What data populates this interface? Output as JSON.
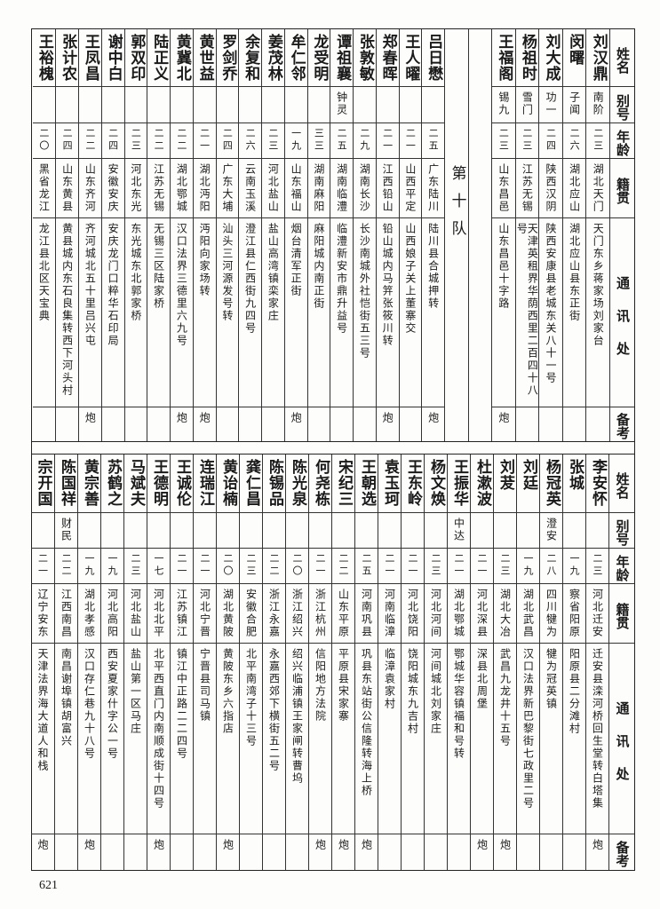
{
  "headers": {
    "name": "姓名",
    "alias": "别号",
    "age": "年龄",
    "native": "籍贯",
    "address": "通讯处",
    "remark": "备考"
  },
  "top": {
    "group_a": [
      {
        "name": "刘汉鼎",
        "alias": "南阶",
        "age": "二三",
        "native": "湖北天门",
        "address": "天门东乡蒋家场刘家台",
        "remark": ""
      },
      {
        "name": "闵曙",
        "alias": "子闻",
        "age": "二六",
        "native": "湖北应山",
        "address": "湖北应山县东正街",
        "remark": ""
      },
      {
        "name": "刘大成",
        "alias": "功一",
        "age": "二四",
        "native": "陕西汉阴",
        "address": "陕西安康县老城东关八十一号",
        "remark": ""
      },
      {
        "name": "杨祖时",
        "alias": "雪门",
        "age": "二三",
        "native": "江苏无锡",
        "address": "天津英租界华荫西里二百四十八号",
        "remark": ""
      },
      {
        "name": "王福阁",
        "alias": "锡九",
        "age": "二三",
        "native": "山东昌邑",
        "address": "山东昌邑十字路",
        "remark": "炮"
      }
    ],
    "division_label": "第十队",
    "group_b": [
      {
        "name": "吕日懋",
        "alias": "",
        "age": "二五",
        "native": "广东陆川",
        "address": "陆川县合城押转",
        "remark": "炮"
      },
      {
        "name": "王人曜",
        "alias": "",
        "age": "二一",
        "native": "山西平定",
        "address": "山西娘子关上董寨交",
        "remark": ""
      },
      {
        "name": "郑春晖",
        "alias": "",
        "age": "二一",
        "native": "江西铅山",
        "address": "铅山城内马笄张筱川转",
        "remark": "炮"
      },
      {
        "name": "张敦敏",
        "alias": "",
        "age": "二九",
        "native": "湖南长沙",
        "address": "长沙南城外社恺街五三号",
        "remark": ""
      },
      {
        "name": "谭祖襄",
        "alias": "钟灵",
        "age": "二五",
        "native": "湖南临澧",
        "address": "临澧新安市鼎升益号",
        "remark": ""
      },
      {
        "name": "龙受明",
        "alias": "",
        "age": "三三",
        "native": "湖南麻阳",
        "address": "麻阳城内南正街",
        "remark": ""
      },
      {
        "name": "牟仁邻",
        "alias": "",
        "age": "一九",
        "native": "山东福山",
        "address": "烟台清军正街",
        "remark": "炮"
      },
      {
        "name": "姜茂林",
        "alias": "",
        "age": "二三",
        "native": "河北盐山",
        "address": "盐山高湾镇栾家庄",
        "remark": ""
      },
      {
        "name": "余复和",
        "alias": "",
        "age": "二六",
        "native": "云南玉溪",
        "address": "澄江县仁西街九四号",
        "remark": ""
      },
      {
        "name": "罗剑乔",
        "alias": "",
        "age": "二四",
        "native": "广东大埔",
        "address": "汕头三河源发号转",
        "remark": ""
      },
      {
        "name": "黄世益",
        "alias": "",
        "age": "二一",
        "native": "湖北沔阳",
        "address": "沔阳向家场转",
        "remark": "炮"
      },
      {
        "name": "黄冀北",
        "alias": "",
        "age": "二二",
        "native": "湖北鄂城",
        "address": "汉口法界三德里六九号",
        "remark": "炮"
      },
      {
        "name": "陆正义",
        "alias": "",
        "age": "二二",
        "native": "江苏无锡",
        "address": "无锡三区陆家桥",
        "remark": ""
      },
      {
        "name": "郭双印",
        "alias": "",
        "age": "二三",
        "native": "河北东光",
        "address": "东光城东北郭家桥",
        "remark": ""
      },
      {
        "name": "谢中白",
        "alias": "",
        "age": "二四",
        "native": "安徽安庆",
        "address": "安庆龙门口粹华石印局",
        "remark": ""
      },
      {
        "name": "王凤昌",
        "alias": "",
        "age": "二二",
        "native": "山东齐河",
        "address": "齐河城北五十里吕兴屯",
        "remark": "炮"
      },
      {
        "name": "张计农",
        "alias": "",
        "age": "二四",
        "native": "山东黄县",
        "address": "黄县城内东石良集转西下河头村",
        "remark": ""
      },
      {
        "name": "王裕槐",
        "alias": "",
        "age": "二〇",
        "native": "黑省龙江",
        "address": "龙江县北区天宝典",
        "remark": ""
      }
    ]
  },
  "bottom": {
    "people": [
      {
        "name": "李安怀",
        "alias": "",
        "age": "二三",
        "native": "河北迁安",
        "address": "迁安县滦河桥回生堂转白塔集",
        "remark": "炮"
      },
      {
        "name": "张城",
        "alias": "",
        "age": "一九",
        "native": "察省阳原",
        "address": "阳原县二分滩村",
        "remark": ""
      },
      {
        "name": "杨冠英",
        "alias": "澄安",
        "age": "二八",
        "native": "四川犍为",
        "address": "犍为冠英镇",
        "remark": ""
      },
      {
        "name": "刘廷",
        "alias": "",
        "age": "一九",
        "native": "湖北武昌",
        "address": "汉口法界新巴黎街七政里二号",
        "remark": ""
      },
      {
        "name": "刘茇",
        "alias": "",
        "age": "二三",
        "native": "湖北大冶",
        "address": "武昌九龙井十五号",
        "remark": "炮"
      },
      {
        "name": "杜漱波",
        "alias": "",
        "age": "二一",
        "native": "河北深县",
        "address": "深县北周堡",
        "remark": "炮"
      },
      {
        "name": "王振华",
        "alias": "中达",
        "age": "二一",
        "native": "湖北鄂城",
        "address": "鄂城华容镇福和号转",
        "remark": ""
      },
      {
        "name": "杨文焕",
        "alias": "",
        "age": "二三",
        "native": "河北河间",
        "address": "河间城北刘家庄",
        "remark": ""
      },
      {
        "name": "王东岭",
        "alias": "",
        "age": "二一",
        "native": "河北饶阳",
        "address": "饶阳城东九吉村",
        "remark": ""
      },
      {
        "name": "袁玉珂",
        "alias": "",
        "age": "二一",
        "native": "河南临漳",
        "address": "临漳袁家村",
        "remark": ""
      },
      {
        "name": "王朝选",
        "alias": "",
        "age": "二五",
        "native": "河南巩县",
        "address": "巩县东站街公信隆转海上桥",
        "remark": "炮"
      },
      {
        "name": "宋纪三",
        "alias": "",
        "age": "二二",
        "native": "山东平原",
        "address": "平原县宋家寨",
        "remark": "炮"
      },
      {
        "name": "何尧栋",
        "alias": "",
        "age": "二一",
        "native": "浙江杭州",
        "address": "信阳地方法院",
        "remark": "炮"
      },
      {
        "name": "陈光泉",
        "alias": "",
        "age": "二〇",
        "native": "浙江绍兴",
        "address": "绍兴临浦镇王家闸转曹坞",
        "remark": ""
      },
      {
        "name": "陈锡品",
        "alias": "",
        "age": "二二",
        "native": "浙江永嘉",
        "address": "永嘉西郊下横街五二号",
        "remark": ""
      },
      {
        "name": "龚仁昌",
        "alias": "",
        "age": "二三",
        "native": "安徽合肥",
        "address": "北平南湾子十三号",
        "remark": ""
      },
      {
        "name": "黄诒楠",
        "alias": "",
        "age": "二〇",
        "native": "湖北黄陂",
        "address": "黄陂东乡六指店",
        "remark": "炮"
      },
      {
        "name": "连瑞江",
        "alias": "",
        "age": "二一",
        "native": "河北宁晋",
        "address": "宁晋县司马镇",
        "remark": ""
      },
      {
        "name": "王诚伦",
        "alias": "",
        "age": "二一",
        "native": "江苏镇江",
        "address": "镇江中正路二二四号",
        "remark": ""
      },
      {
        "name": "王德明",
        "alias": "",
        "age": "一七",
        "native": "河北北平",
        "address": "北平西直门内南顺成街十四号",
        "remark": "炮"
      },
      {
        "name": "马斌夫",
        "alias": "",
        "age": "二三",
        "native": "河北盐山",
        "address": "盐山第一区马庄",
        "remark": ""
      },
      {
        "name": "苏鹤之",
        "alias": "",
        "age": "一九",
        "native": "河北高阳",
        "address": "西安夏家什字公一号",
        "remark": ""
      },
      {
        "name": "黄宗善",
        "alias": "",
        "age": "一九",
        "native": "湖北孝感",
        "address": "汉口存仁巷九十八号",
        "remark": "炮"
      },
      {
        "name": "陈国祥",
        "alias": "财民",
        "age": "二二",
        "native": "江西南昌",
        "address": "南昌谢埠镇胡富兴",
        "remark": ""
      },
      {
        "name": "宗开国",
        "alias": "",
        "age": "二一",
        "native": "辽宁安东",
        "address": "天津法界海大道人和栈",
        "remark": "炮"
      }
    ]
  },
  "page_number": "621"
}
